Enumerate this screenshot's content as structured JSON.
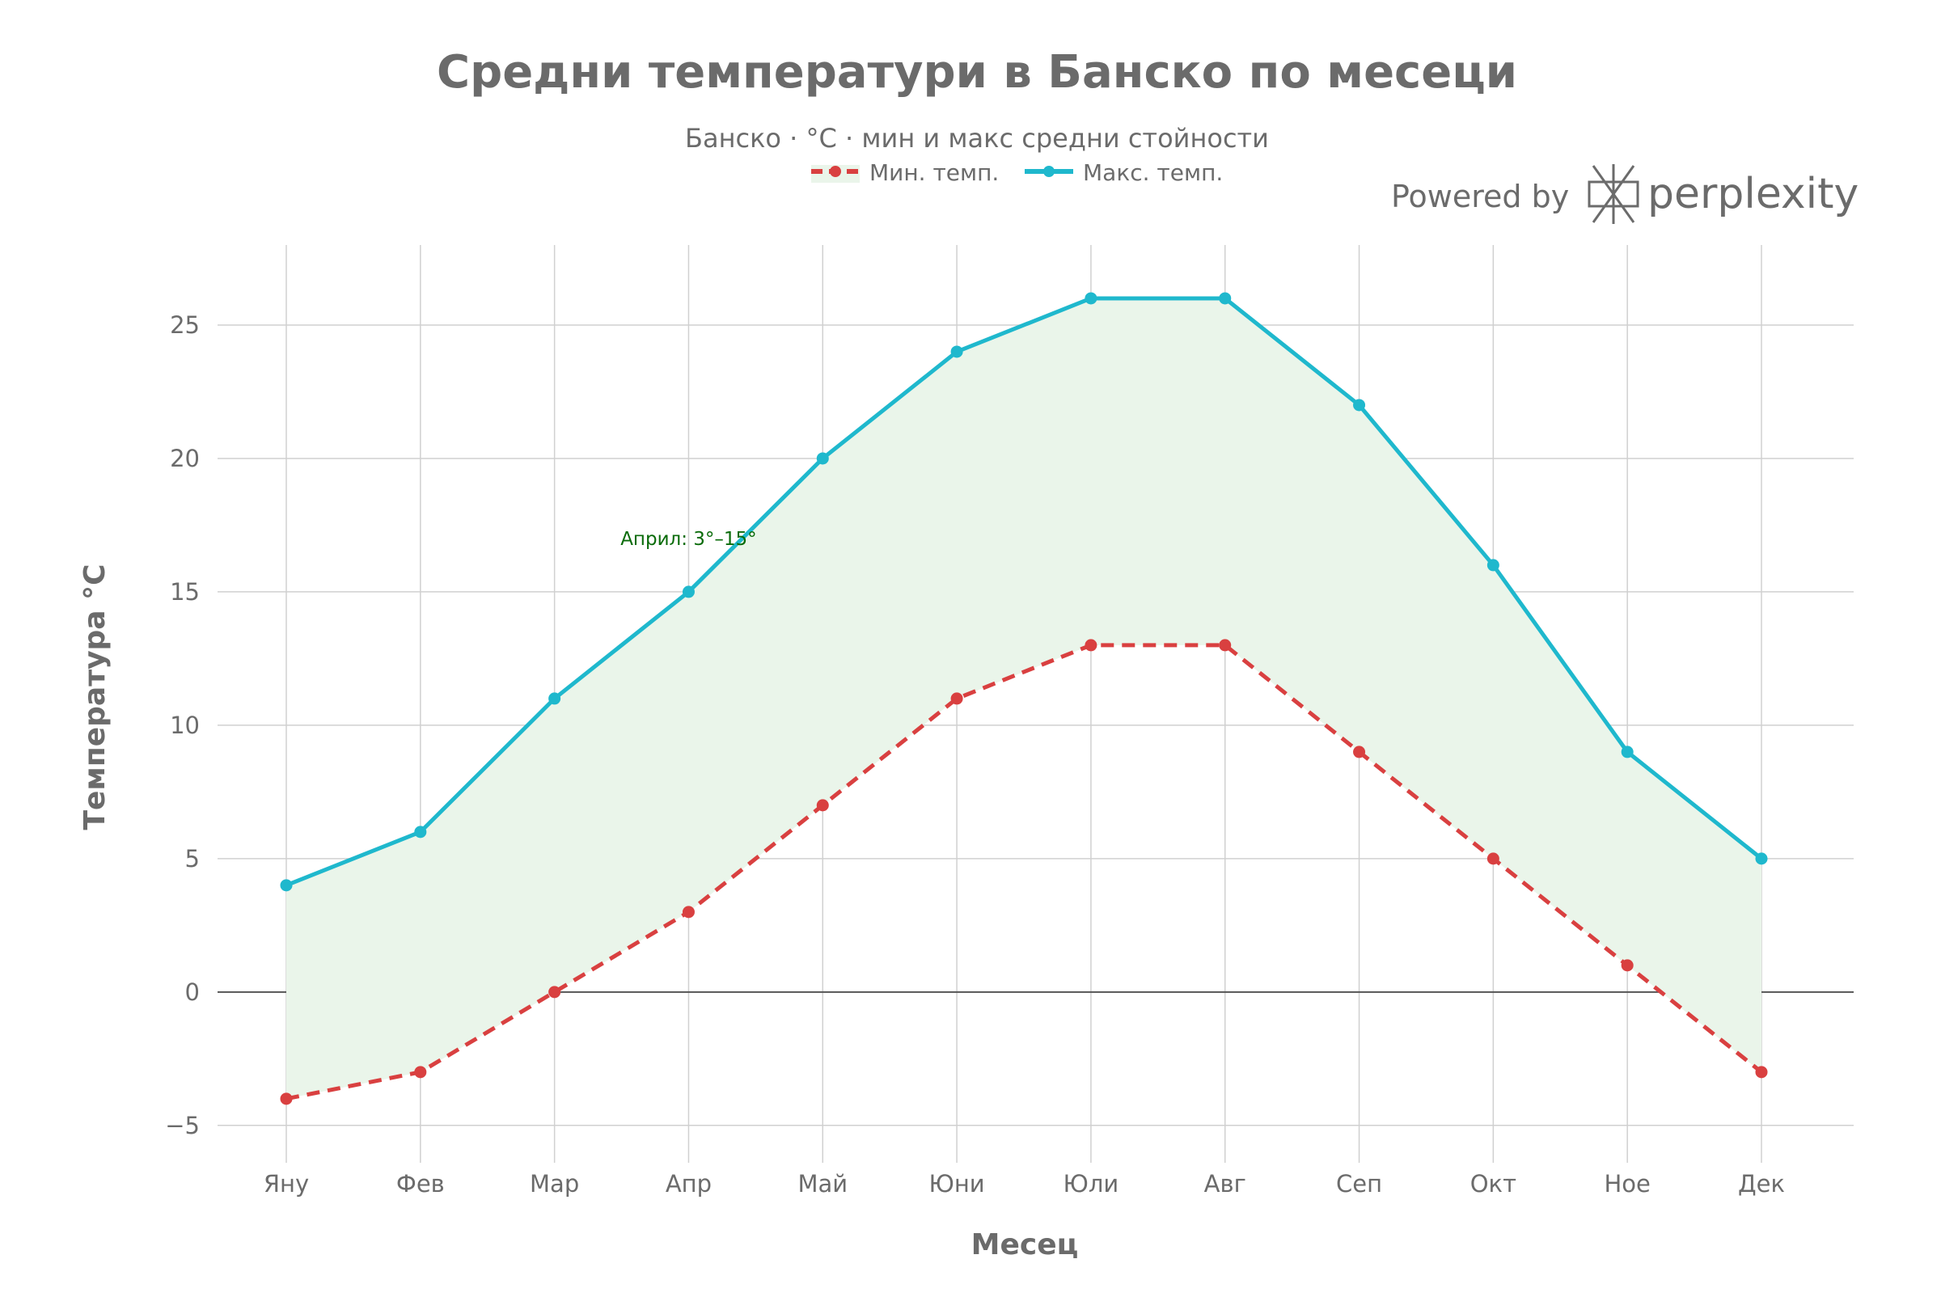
{
  "chart_data": {
    "type": "line",
    "title": "Средни температури в Банско по месеци",
    "subtitle": "Банско · °C · мин и макс средни стойности",
    "xlabel": "Месец",
    "ylabel": "Температура °C",
    "categories": [
      "Яну",
      "Фев",
      "Мар",
      "Апр",
      "Май",
      "Юни",
      "Юли",
      "Авг",
      "Сеп",
      "Окт",
      "Ное",
      "Дек"
    ],
    "series": [
      {
        "name": "Мин. темп.",
        "color": "#d94040",
        "dash": "dashed",
        "values": [
          -4,
          -3,
          0,
          3,
          7,
          11,
          13,
          13,
          9,
          5,
          1,
          -3
        ]
      },
      {
        "name": "Макс. темп.",
        "color": "#1fb8cd",
        "dash": "solid",
        "values": [
          4,
          6,
          11,
          15,
          20,
          24,
          26,
          26,
          22,
          16,
          9,
          5
        ]
      }
    ],
    "fill_between_color": "#eaf5ea",
    "ylim": [
      -6.4,
      28
    ],
    "yticks": [
      -5,
      0,
      5,
      10,
      15,
      20,
      25
    ],
    "ytick_labels": [
      "−5",
      "0",
      "5",
      "10",
      "15",
      "20",
      "25"
    ],
    "grid": true,
    "legend_position": "top-center",
    "annotation": {
      "text": "Април: 3°–15°",
      "x": "Апр",
      "y": 17,
      "color": "#0a6b0a"
    }
  },
  "branding": {
    "powered_by": "Powered by",
    "name": "perplexity"
  }
}
